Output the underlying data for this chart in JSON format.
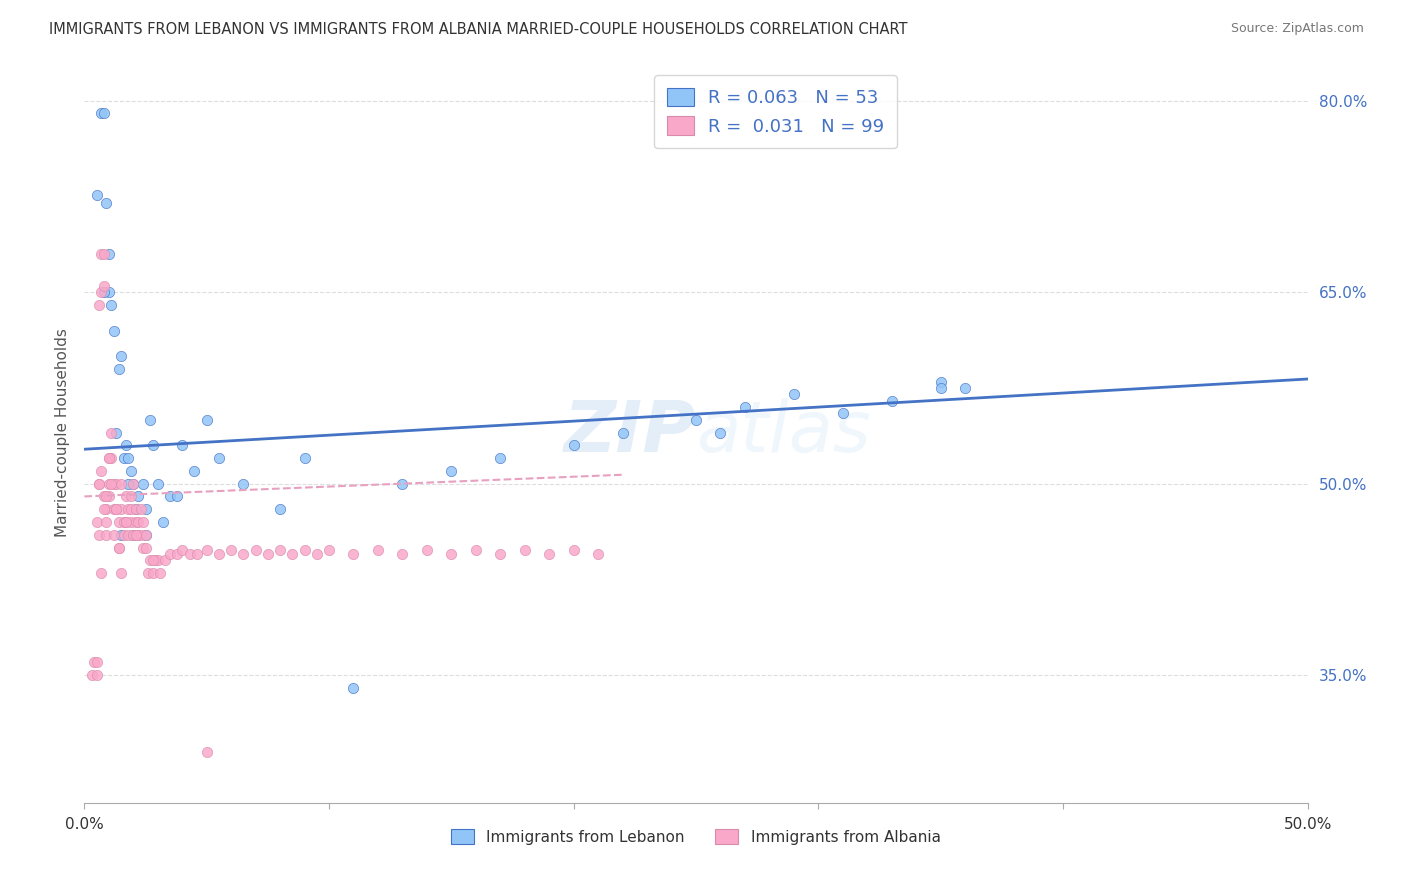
{
  "title": "IMMIGRANTS FROM LEBANON VS IMMIGRANTS FROM ALBANIA MARRIED-COUPLE HOUSEHOLDS CORRELATION CHART",
  "source": "Source: ZipAtlas.com",
  "ylabel": "Married-couple Households",
  "xlim": [
    0.0,
    0.5
  ],
  "ylim": [
    0.25,
    0.83
  ],
  "xticks": [
    0.0,
    0.1,
    0.2,
    0.3,
    0.4,
    0.5
  ],
  "xticklabels": [
    "0.0%",
    "",
    "",
    "",
    "",
    "50.0%"
  ],
  "yticks_right": [
    0.35,
    0.5,
    0.65,
    0.8
  ],
  "ytick_labels_right": [
    "35.0%",
    "50.0%",
    "65.0%",
    "80.0%"
  ],
  "color_lebanon": "#92C5F7",
  "color_albania": "#F9A8C9",
  "line_color_lebanon": "#4472C4",
  "line_color_albania": "#E8A0C0",
  "watermark": "ZIPatlas",
  "leb_line_x0": 0.0,
  "leb_line_x1": 0.5,
  "leb_line_y0": 0.527,
  "leb_line_y1": 0.582,
  "alb_line_x0": 0.0,
  "alb_line_x1": 0.22,
  "alb_line_y0": 0.49,
  "alb_line_y1": 0.507,
  "lebanon_x": [
    0.005,
    0.007,
    0.008,
    0.009,
    0.01,
    0.01,
    0.011,
    0.012,
    0.013,
    0.014,
    0.015,
    0.016,
    0.017,
    0.018,
    0.019,
    0.02,
    0.021,
    0.022,
    0.024,
    0.025,
    0.027,
    0.028,
    0.03,
    0.032,
    0.035,
    0.038,
    0.04,
    0.045,
    0.05,
    0.055,
    0.065,
    0.08,
    0.09,
    0.11,
    0.13,
    0.15,
    0.17,
    0.2,
    0.22,
    0.25,
    0.27,
    0.29,
    0.31,
    0.33,
    0.35,
    0.36,
    0.02,
    0.025,
    0.015,
    0.018,
    0.008,
    0.35,
    0.26
  ],
  "lebanon_y": [
    0.726,
    0.79,
    0.79,
    0.72,
    0.65,
    0.68,
    0.64,
    0.62,
    0.54,
    0.59,
    0.6,
    0.52,
    0.53,
    0.52,
    0.51,
    0.5,
    0.48,
    0.49,
    0.5,
    0.48,
    0.55,
    0.53,
    0.5,
    0.47,
    0.49,
    0.49,
    0.53,
    0.51,
    0.55,
    0.52,
    0.5,
    0.48,
    0.52,
    0.34,
    0.5,
    0.51,
    0.52,
    0.53,
    0.54,
    0.55,
    0.56,
    0.57,
    0.555,
    0.565,
    0.58,
    0.575,
    0.46,
    0.46,
    0.46,
    0.5,
    0.65,
    0.575,
    0.54
  ],
  "albania_x": [
    0.003,
    0.004,
    0.005,
    0.005,
    0.006,
    0.006,
    0.007,
    0.007,
    0.008,
    0.008,
    0.009,
    0.009,
    0.01,
    0.01,
    0.011,
    0.011,
    0.012,
    0.012,
    0.013,
    0.013,
    0.014,
    0.014,
    0.015,
    0.015,
    0.016,
    0.016,
    0.017,
    0.017,
    0.018,
    0.018,
    0.019,
    0.019,
    0.02,
    0.02,
    0.021,
    0.021,
    0.022,
    0.022,
    0.023,
    0.023,
    0.024,
    0.024,
    0.025,
    0.025,
    0.026,
    0.027,
    0.028,
    0.029,
    0.03,
    0.031,
    0.033,
    0.035,
    0.038,
    0.04,
    0.043,
    0.046,
    0.05,
    0.055,
    0.06,
    0.065,
    0.07,
    0.075,
    0.08,
    0.085,
    0.09,
    0.095,
    0.1,
    0.11,
    0.12,
    0.13,
    0.14,
    0.15,
    0.16,
    0.17,
    0.18,
    0.19,
    0.2,
    0.21,
    0.05,
    0.028,
    0.006,
    0.008,
    0.01,
    0.007,
    0.009,
    0.011,
    0.013,
    0.015,
    0.017,
    0.019,
    0.021,
    0.005,
    0.006,
    0.007,
    0.008,
    0.009,
    0.01,
    0.012,
    0.014
  ],
  "albania_y": [
    0.35,
    0.36,
    0.36,
    0.47,
    0.64,
    0.5,
    0.68,
    0.65,
    0.655,
    0.68,
    0.47,
    0.48,
    0.5,
    0.52,
    0.52,
    0.54,
    0.5,
    0.48,
    0.5,
    0.48,
    0.47,
    0.45,
    0.48,
    0.5,
    0.47,
    0.46,
    0.47,
    0.49,
    0.46,
    0.48,
    0.47,
    0.48,
    0.46,
    0.5,
    0.48,
    0.47,
    0.46,
    0.47,
    0.48,
    0.46,
    0.45,
    0.47,
    0.46,
    0.45,
    0.43,
    0.44,
    0.43,
    0.44,
    0.44,
    0.43,
    0.44,
    0.445,
    0.445,
    0.448,
    0.445,
    0.445,
    0.448,
    0.445,
    0.448,
    0.445,
    0.448,
    0.445,
    0.448,
    0.445,
    0.448,
    0.445,
    0.448,
    0.445,
    0.448,
    0.445,
    0.448,
    0.445,
    0.448,
    0.445,
    0.448,
    0.445,
    0.448,
    0.445,
    0.29,
    0.44,
    0.46,
    0.49,
    0.49,
    0.43,
    0.46,
    0.5,
    0.48,
    0.43,
    0.47,
    0.49,
    0.46,
    0.35,
    0.5,
    0.51,
    0.48,
    0.49,
    0.52,
    0.46,
    0.45
  ]
}
